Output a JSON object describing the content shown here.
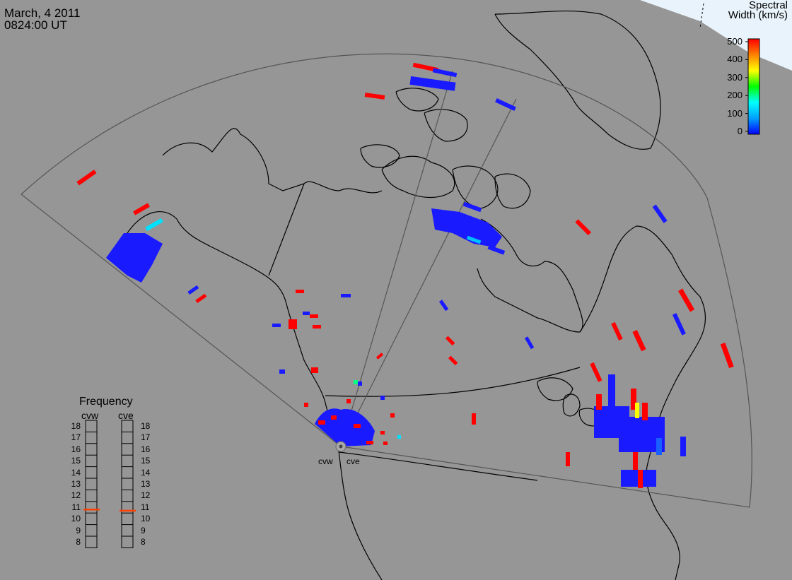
{
  "header": {
    "date": "March, 4 2011",
    "time": "0824:00 UT"
  },
  "colorbar": {
    "title_line1": "Spectral",
    "title_line2": "Width (km/s)",
    "ticks": [
      "500",
      "400",
      "300",
      "200",
      "100",
      "0"
    ],
    "stops": [
      "#0000ff",
      "#00a0ff",
      "#00ffff",
      "#00ff00",
      "#ffff00",
      "#ff8000",
      "#ff0000"
    ]
  },
  "radars": [
    {
      "name": "cvw"
    },
    {
      "name": "cve"
    }
  ],
  "frequency": {
    "title": "Frequency",
    "columns": [
      "cvw",
      "cve"
    ],
    "levels": [
      "18",
      "17",
      "16",
      "15",
      "14",
      "13",
      "12",
      "11",
      "10",
      "9",
      "8"
    ],
    "cvw_value": 10.8,
    "cve_value": 10.7,
    "marker_color": "#ff4000"
  },
  "map_colors": {
    "background": "#969696",
    "land_outline": "#000000",
    "fov_outline": "#555555",
    "ice": "#e6f2fa",
    "low_width": "#0000ff",
    "high_width": "#ff0000"
  }
}
